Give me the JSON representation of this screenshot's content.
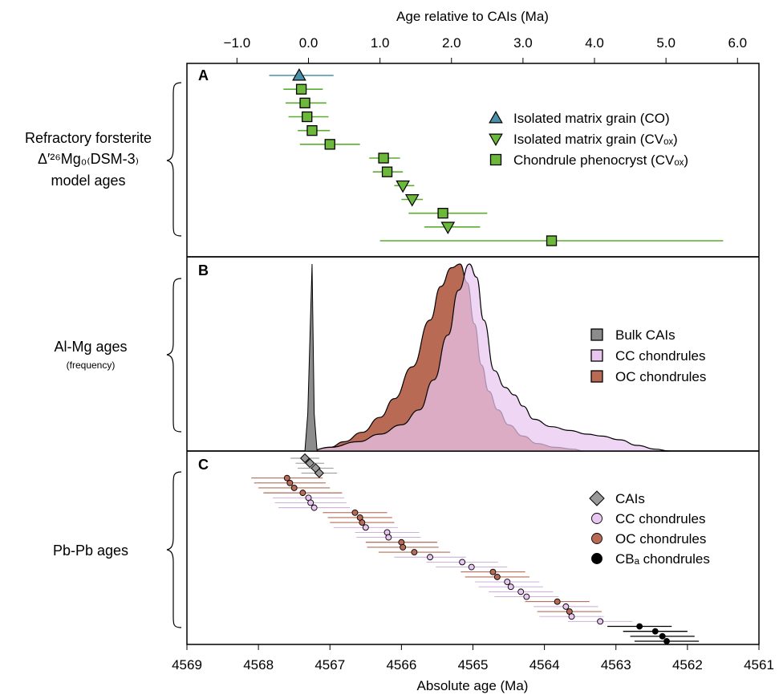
{
  "chart_data": {
    "type": "scatter",
    "x_top": {
      "label": "Age relative to CAIs (Ma)",
      "ticks": [
        "−1.0",
        "0.0",
        "1.0",
        "2.0",
        "3.0",
        "4.0",
        "5.0",
        "6.0"
      ]
    },
    "x_bottom": {
      "label": "Absolute age (Ma)",
      "ticks": [
        "4569",
        "4568",
        "4567",
        "4566",
        "4565",
        "4564",
        "4563",
        "4562",
        "4561"
      ],
      "xlim": [
        4569,
        4561
      ]
    },
    "panels": [
      {
        "id": "A",
        "letter": "A",
        "label_lines": [
          "Refractory forsterite",
          "Δ′²⁶Mg₀₍DSM-3₎",
          "model ages"
        ],
        "legend": [
          {
            "name": "Isolated matrix grain (CO)",
            "marker": "triangle-up",
            "color": "#4a8fa8"
          },
          {
            "name": "Isolated matrix grain (CVₒₓ)",
            "marker": "triangle-down",
            "color": "#6cb83b"
          },
          {
            "name": "Chondrule phenocryst (CVₒₓ)",
            "marker": "square",
            "color": "#6cb83b"
          }
        ],
        "points": [
          {
            "age": -0.13,
            "lo": -0.55,
            "hi": 0.35,
            "type": 0
          },
          {
            "age": -0.1,
            "lo": -0.35,
            "hi": 0.2,
            "type": 2
          },
          {
            "age": -0.05,
            "lo": -0.32,
            "hi": 0.25,
            "type": 2
          },
          {
            "age": -0.02,
            "lo": -0.28,
            "hi": 0.28,
            "type": 2
          },
          {
            "age": 0.05,
            "lo": -0.15,
            "hi": 0.3,
            "type": 2
          },
          {
            "age": 0.3,
            "lo": -0.12,
            "hi": 0.72,
            "type": 2
          },
          {
            "age": 1.05,
            "lo": 0.85,
            "hi": 1.28,
            "type": 2
          },
          {
            "age": 1.1,
            "lo": 0.9,
            "hi": 1.32,
            "type": 2
          },
          {
            "age": 1.32,
            "lo": 1.2,
            "hi": 1.48,
            "type": 1
          },
          {
            "age": 1.45,
            "lo": 1.3,
            "hi": 1.6,
            "type": 1
          },
          {
            "age": 1.88,
            "lo": 1.4,
            "hi": 2.5,
            "type": 2
          },
          {
            "age": 1.95,
            "lo": 1.62,
            "hi": 2.4,
            "type": 1
          },
          {
            "age": 3.4,
            "lo": 1.0,
            "hi": 5.8,
            "type": 2
          }
        ]
      },
      {
        "id": "B",
        "letter": "B",
        "label_lines": [
          "Al-Mg ages"
        ],
        "sub_label": "(frequency)",
        "legend": [
          {
            "name": "Bulk CAIs",
            "marker": "square",
            "color": "#8c8c8c"
          },
          {
            "name": "CC chondrules",
            "marker": "square",
            "color": "#e9c6f0"
          },
          {
            "name": "OC chondrules",
            "marker": "square",
            "color": "#b96a55"
          }
        ],
        "series": [
          {
            "name": "Bulk CAIs",
            "color": "#8c8c8c",
            "x": [
              4567.35,
              4567.31,
              4567.28,
              4567.25,
              4567.22,
              4567.18
            ],
            "y": [
              0,
              0.2,
              0.6,
              1.0,
              0.2,
              0
            ]
          },
          {
            "name": "CC chondrules",
            "color": "#e9c6f0",
            "x": [
              4567.3,
              4567.0,
              4566.6,
              4566.3,
              4566.0,
              4565.75,
              4565.55,
              4565.35,
              4565.2,
              4565.05,
              4564.95,
              4564.85,
              4564.7,
              4564.55,
              4564.42,
              4564.3,
              4564.15,
              4563.9,
              4563.65,
              4563.4,
              4563.2,
              4562.95,
              4562.7,
              4562.45,
              4562.25
            ],
            "y": [
              0,
              0.02,
              0.05,
              0.09,
              0.14,
              0.22,
              0.38,
              0.62,
              0.86,
              1.0,
              0.93,
              0.7,
              0.43,
              0.34,
              0.3,
              0.24,
              0.17,
              0.13,
              0.11,
              0.09,
              0.08,
              0.06,
              0.03,
              0.01,
              0
            ]
          },
          {
            "name": "OC chondrules",
            "color": "#b96a55",
            "x": [
              4567.3,
              4567.0,
              4566.8,
              4566.55,
              4566.3,
              4566.1,
              4565.85,
              4565.6,
              4565.45,
              4565.3,
              4565.18,
              4565.08,
              4564.98,
              4564.88,
              4564.78,
              4564.65,
              4564.5,
              4564.3,
              4564.1,
              4563.85,
              4563.6,
              4563.45
            ],
            "y": [
              0,
              0.02,
              0.05,
              0.1,
              0.18,
              0.28,
              0.45,
              0.7,
              0.88,
              0.98,
              1.0,
              0.9,
              0.68,
              0.46,
              0.32,
              0.22,
              0.14,
              0.08,
              0.04,
              0.02,
              0.01,
              0
            ]
          }
        ]
      },
      {
        "id": "C",
        "letter": "C",
        "label_lines": [
          "Pb-Pb ages"
        ],
        "legend": [
          {
            "name": "CAIs",
            "marker": "diamond",
            "color": "#999999"
          },
          {
            "name": "CC chondrules",
            "marker": "circle",
            "color": "#e9c6f0"
          },
          {
            "name": "OC chondrules",
            "marker": "circle",
            "color": "#b96a55"
          },
          {
            "name": "CBₐ chondrules",
            "marker": "circle",
            "color": "#000000"
          }
        ],
        "points": [
          {
            "age": 4567.35,
            "err": 0.2,
            "type": 0
          },
          {
            "age": 4567.28,
            "err": 0.2,
            "type": 0
          },
          {
            "age": 4567.2,
            "err": 0.25,
            "type": 0
          },
          {
            "age": 4567.15,
            "err": 0.25,
            "type": 0
          },
          {
            "age": 4567.6,
            "err": 0.5,
            "type": 2
          },
          {
            "age": 4567.56,
            "err": 0.5,
            "type": 2
          },
          {
            "age": 4567.5,
            "err": 0.5,
            "type": 2
          },
          {
            "age": 4567.38,
            "err": 0.55,
            "type": 2
          },
          {
            "age": 4567.3,
            "err": 0.5,
            "type": 1
          },
          {
            "age": 4567.27,
            "err": 0.5,
            "type": 1
          },
          {
            "age": 4567.22,
            "err": 0.5,
            "type": 1
          },
          {
            "age": 4566.65,
            "err": 0.45,
            "type": 2
          },
          {
            "age": 4566.58,
            "err": 0.45,
            "type": 2
          },
          {
            "age": 4566.55,
            "err": 0.45,
            "type": 2
          },
          {
            "age": 4566.5,
            "err": 0.45,
            "type": 1
          },
          {
            "age": 4566.2,
            "err": 0.45,
            "type": 1
          },
          {
            "age": 4566.18,
            "err": 0.45,
            "type": 1
          },
          {
            "age": 4566.0,
            "err": 0.5,
            "type": 2
          },
          {
            "age": 4565.98,
            "err": 0.5,
            "type": 2
          },
          {
            "age": 4565.82,
            "err": 0.5,
            "type": 2
          },
          {
            "age": 4565.6,
            "err": 0.5,
            "type": 1
          },
          {
            "age": 4565.15,
            "err": 0.5,
            "type": 1
          },
          {
            "age": 4565.02,
            "err": 0.5,
            "type": 1
          },
          {
            "age": 4564.72,
            "err": 0.45,
            "type": 2
          },
          {
            "age": 4564.66,
            "err": 0.45,
            "type": 2
          },
          {
            "age": 4564.52,
            "err": 0.45,
            "type": 1
          },
          {
            "age": 4564.47,
            "err": 0.45,
            "type": 1
          },
          {
            "age": 4564.33,
            "err": 0.45,
            "type": 1
          },
          {
            "age": 4564.25,
            "err": 0.45,
            "type": 1
          },
          {
            "age": 4563.82,
            "err": 0.45,
            "type": 2
          },
          {
            "age": 4563.7,
            "err": 0.45,
            "type": 1
          },
          {
            "age": 4563.65,
            "err": 0.45,
            "type": 2
          },
          {
            "age": 4563.62,
            "err": 0.45,
            "type": 1
          },
          {
            "age": 4563.22,
            "err": 0.45,
            "type": 1
          },
          {
            "age": 4562.67,
            "err": 0.45,
            "type": 3
          },
          {
            "age": 4562.45,
            "err": 0.45,
            "type": 3
          },
          {
            "age": 4562.35,
            "err": 0.45,
            "type": 3
          },
          {
            "age": 4562.29,
            "err": 0.45,
            "type": 3
          }
        ]
      }
    ]
  }
}
